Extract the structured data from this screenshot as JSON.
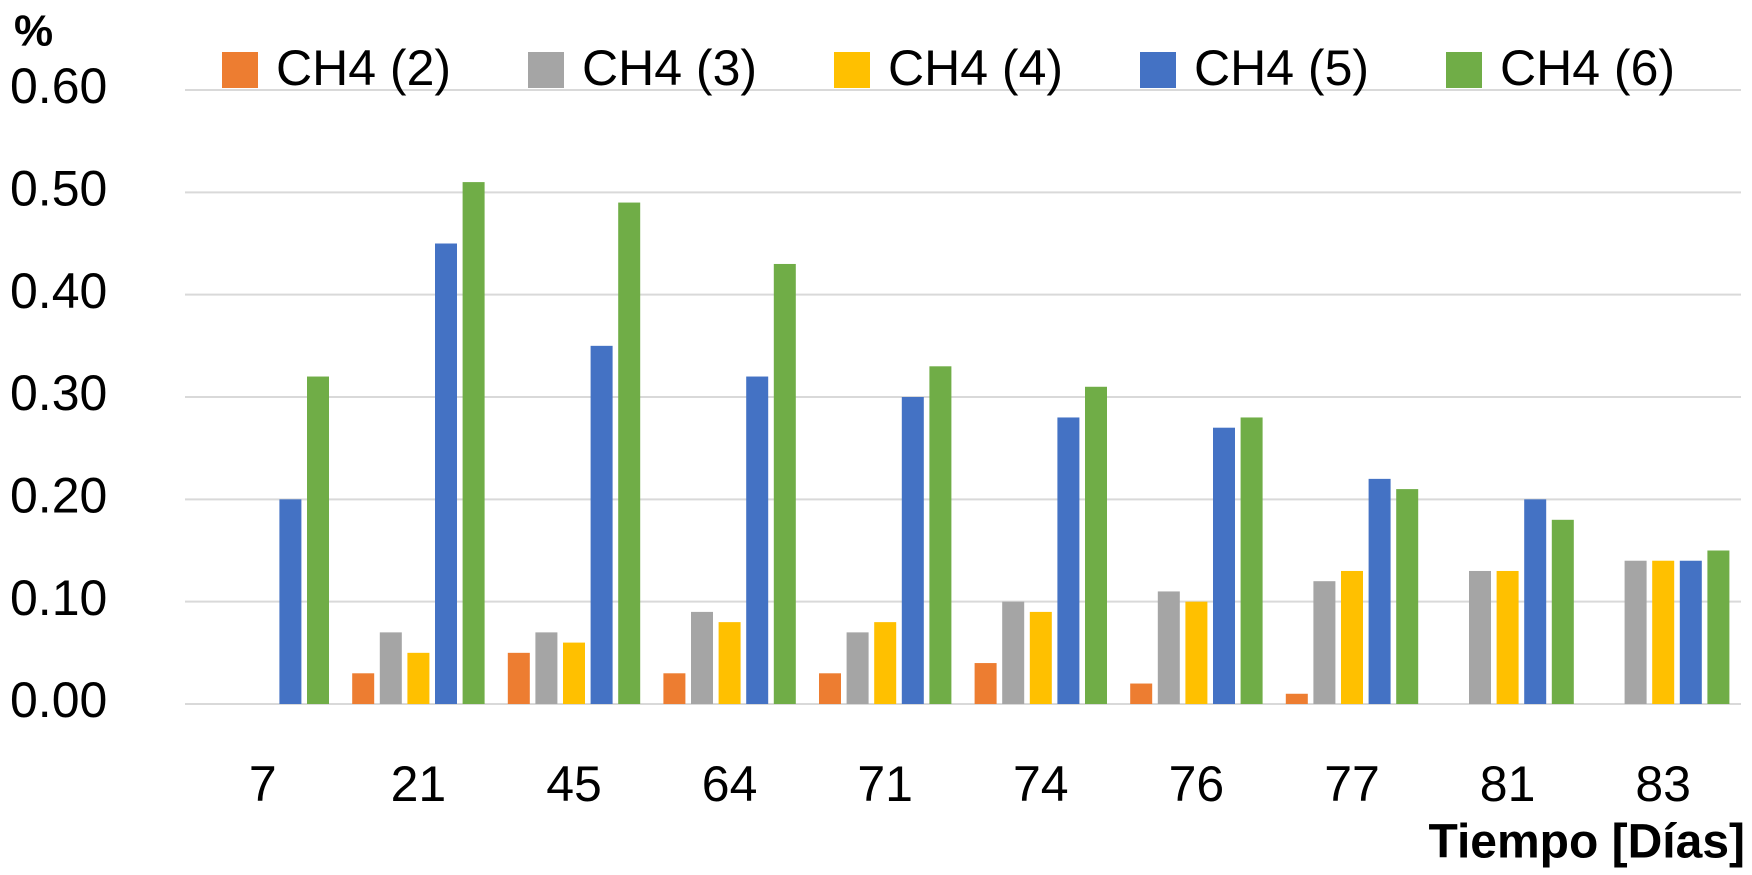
{
  "chart_data": {
    "type": "bar",
    "y_label": "%",
    "x_label": "Tiempo [Días]",
    "categories": [
      "7",
      "21",
      "45",
      "64",
      "71",
      "74",
      "76",
      "77",
      "81",
      "83"
    ],
    "series": [
      {
        "name": "CH4 (2)",
        "color": "#ed7d31",
        "values": [
          0,
          0.03,
          0.05,
          0.03,
          0.03,
          0.04,
          0.02,
          0.01,
          0,
          0
        ]
      },
      {
        "name": "CH4 (3)",
        "color": "#a5a5a5",
        "values": [
          0,
          0.07,
          0.07,
          0.09,
          0.07,
          0.1,
          0.11,
          0.12,
          0.13,
          0.14
        ]
      },
      {
        "name": "CH4 (4)",
        "color": "#ffc000",
        "values": [
          0,
          0.05,
          0.06,
          0.08,
          0.08,
          0.09,
          0.1,
          0.13,
          0.13,
          0.14
        ]
      },
      {
        "name": "CH4 (5)",
        "color": "#4472c4",
        "values": [
          0.2,
          0.45,
          0.35,
          0.32,
          0.3,
          0.28,
          0.27,
          0.22,
          0.2,
          0.14
        ]
      },
      {
        "name": "CH4 (6)",
        "color": "#70ad47",
        "values": [
          0.32,
          0.51,
          0.49,
          0.43,
          0.33,
          0.31,
          0.28,
          0.21,
          0.18,
          0.15
        ]
      }
    ],
    "ylim": [
      0,
      0.6
    ],
    "yticks": [
      {
        "value": 0,
        "label": "0.00"
      },
      {
        "value": 0.1,
        "label": "0.10"
      },
      {
        "value": 0.2,
        "label": "0.20"
      },
      {
        "value": 0.3,
        "label": "0.30"
      },
      {
        "value": 0.4,
        "label": "0.40"
      },
      {
        "value": 0.5,
        "label": "0.50"
      },
      {
        "value": 0.6,
        "label": "0.60"
      }
    ],
    "grid": true,
    "legend": "top"
  }
}
